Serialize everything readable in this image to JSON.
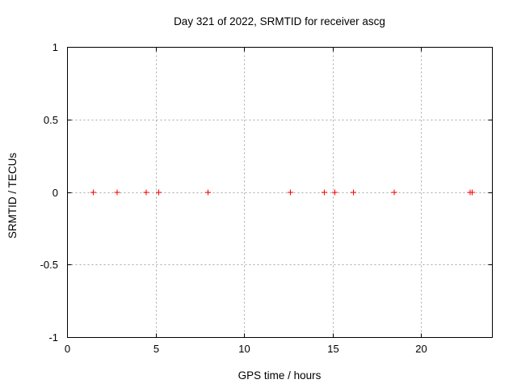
{
  "page": {
    "background": "#ffffff"
  },
  "style": {
    "axis_color": "#000000",
    "grid_color": "#a8a8a8",
    "text_color": "#000000"
  },
  "chart_data": {
    "type": "scatter",
    "title": "Day 321 of 2022, SRMTID for receiver ascg",
    "xlabel": "GPS time / hours",
    "ylabel": "SRMTID / TECUs",
    "xlim": [
      0,
      24
    ],
    "ylim": [
      -1,
      1
    ],
    "xticks": [
      0,
      5,
      10,
      15,
      20
    ],
    "yticks": [
      1,
      0.5,
      0,
      -0.5,
      -1
    ],
    "grid": true,
    "legend": "none",
    "series": [
      {
        "name": "SRMTID",
        "marker": "plus",
        "color": "#ff0000",
        "x": [
          1.45,
          2.8,
          4.45,
          5.15,
          7.95,
          12.6,
          14.5,
          15.1,
          16.15,
          18.45,
          22.75,
          22.85
        ],
        "y": [
          0,
          0,
          0,
          0,
          0,
          0,
          0,
          0,
          0,
          0,
          0,
          0
        ]
      }
    ]
  }
}
